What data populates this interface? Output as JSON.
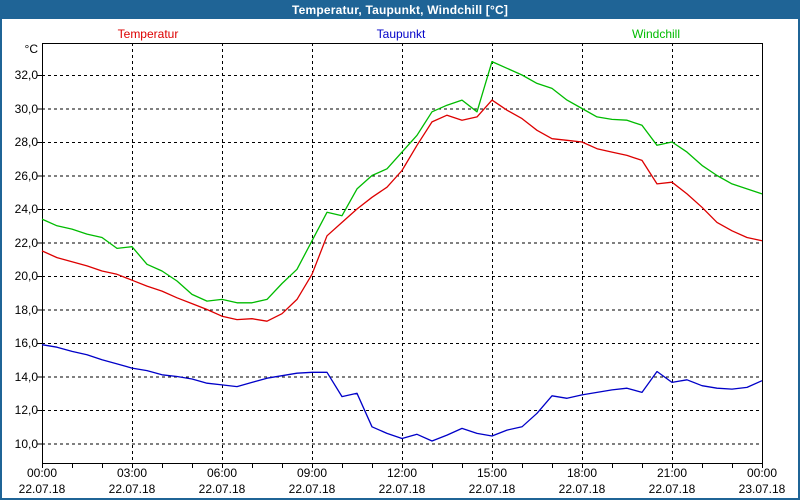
{
  "window": {
    "title": "Temperatur, Taupunkt, Windchill [°C]"
  },
  "colors": {
    "titlebar": "#1F6496",
    "border": "#1F6496",
    "background": "#FFFFFF",
    "grid": "#000000",
    "temperatur": "#DD0000",
    "taupunkt": "#0000C8",
    "windchill": "#00BB00"
  },
  "legend": {
    "items": [
      {
        "label": "Temperatur",
        "color_key": "temperatur"
      },
      {
        "label": "Taupunkt",
        "color_key": "taupunkt"
      },
      {
        "label": "Windchill",
        "color_key": "windchill"
      }
    ]
  },
  "axis": {
    "y_unit": "°C",
    "y_ticks": [
      {
        "value": 32,
        "label": "32,0"
      },
      {
        "value": 30,
        "label": "30,0"
      },
      {
        "value": 28,
        "label": "28,0"
      },
      {
        "value": 26,
        "label": "26,0"
      },
      {
        "value": 24,
        "label": "24,0"
      },
      {
        "value": 22,
        "label": "22,0"
      },
      {
        "value": 20,
        "label": "20,0"
      },
      {
        "value": 18,
        "label": "18,0"
      },
      {
        "value": 16,
        "label": "16,0"
      },
      {
        "value": 14,
        "label": "14,0"
      },
      {
        "value": 12,
        "label": "12,0"
      },
      {
        "value": 10,
        "label": "10,0"
      }
    ],
    "x_ticks": [
      {
        "time": "00:00",
        "date": "22.07.18"
      },
      {
        "time": "03:00",
        "date": "22.07.18"
      },
      {
        "time": "06:00",
        "date": "22.07.18"
      },
      {
        "time": "09:00",
        "date": "22.07.18"
      },
      {
        "time": "12:00",
        "date": "22.07.18"
      },
      {
        "time": "15:00",
        "date": "22.07.18"
      },
      {
        "time": "18:00",
        "date": "22.07.18"
      },
      {
        "time": "21:00",
        "date": "22.07.18"
      },
      {
        "time": "00:00",
        "date": "23.07.18"
      }
    ]
  },
  "chart_data": {
    "type": "line",
    "title": "Temperatur, Taupunkt, Windchill [°C]",
    "x_unit": "time of day (hours)",
    "x_start_hour": 0,
    "x_step_hours": 0.5,
    "ylim": [
      10,
      32
    ],
    "grid": true,
    "legend_position": "top",
    "series": [
      {
        "name": "Temperatur",
        "color_key": "temperatur",
        "values": [
          21.5,
          21.1,
          20.85,
          20.6,
          20.3,
          20.1,
          19.75,
          19.4,
          19.1,
          18.7,
          18.35,
          18.0,
          17.6,
          17.4,
          17.45,
          17.3,
          17.75,
          18.6,
          20.1,
          22.4,
          23.2,
          24.0,
          24.7,
          25.3,
          26.3,
          27.8,
          29.2,
          29.6,
          29.3,
          29.5,
          30.5,
          29.9,
          29.4,
          28.7,
          28.2,
          28.1,
          28.0,
          27.6,
          27.4,
          27.2,
          26.9,
          25.5,
          25.6,
          24.9,
          24.1,
          23.2,
          22.7,
          22.3,
          22.1
        ]
      },
      {
        "name": "Taupunkt",
        "color_key": "taupunkt",
        "values": [
          15.9,
          15.75,
          15.5,
          15.3,
          15.0,
          14.75,
          14.5,
          14.35,
          14.1,
          14.0,
          13.85,
          13.6,
          13.5,
          13.4,
          13.65,
          13.9,
          14.05,
          14.2,
          14.25,
          14.25,
          12.8,
          13.0,
          11.0,
          10.6,
          10.3,
          10.55,
          10.15,
          10.5,
          10.9,
          10.6,
          10.45,
          10.8,
          11.0,
          11.8,
          12.85,
          12.7,
          12.9,
          13.05,
          13.2,
          13.3,
          13.05,
          14.3,
          13.65,
          13.8,
          13.45,
          13.3,
          13.25,
          13.35,
          13.75
        ]
      },
      {
        "name": "Windchill",
        "color_key": "windchill",
        "values": [
          23.4,
          23.0,
          22.8,
          22.5,
          22.3,
          21.65,
          21.75,
          20.7,
          20.3,
          19.7,
          18.9,
          18.5,
          18.6,
          18.4,
          18.4,
          18.6,
          19.55,
          20.4,
          22.1,
          23.8,
          23.6,
          25.2,
          26.0,
          26.4,
          27.4,
          28.4,
          29.8,
          30.2,
          30.5,
          29.8,
          32.8,
          32.4,
          32.0,
          31.5,
          31.2,
          30.5,
          30.0,
          29.5,
          29.35,
          29.3,
          29.0,
          27.8,
          28.0,
          27.4,
          26.6,
          26.0,
          25.5,
          25.2,
          24.9
        ]
      }
    ]
  }
}
